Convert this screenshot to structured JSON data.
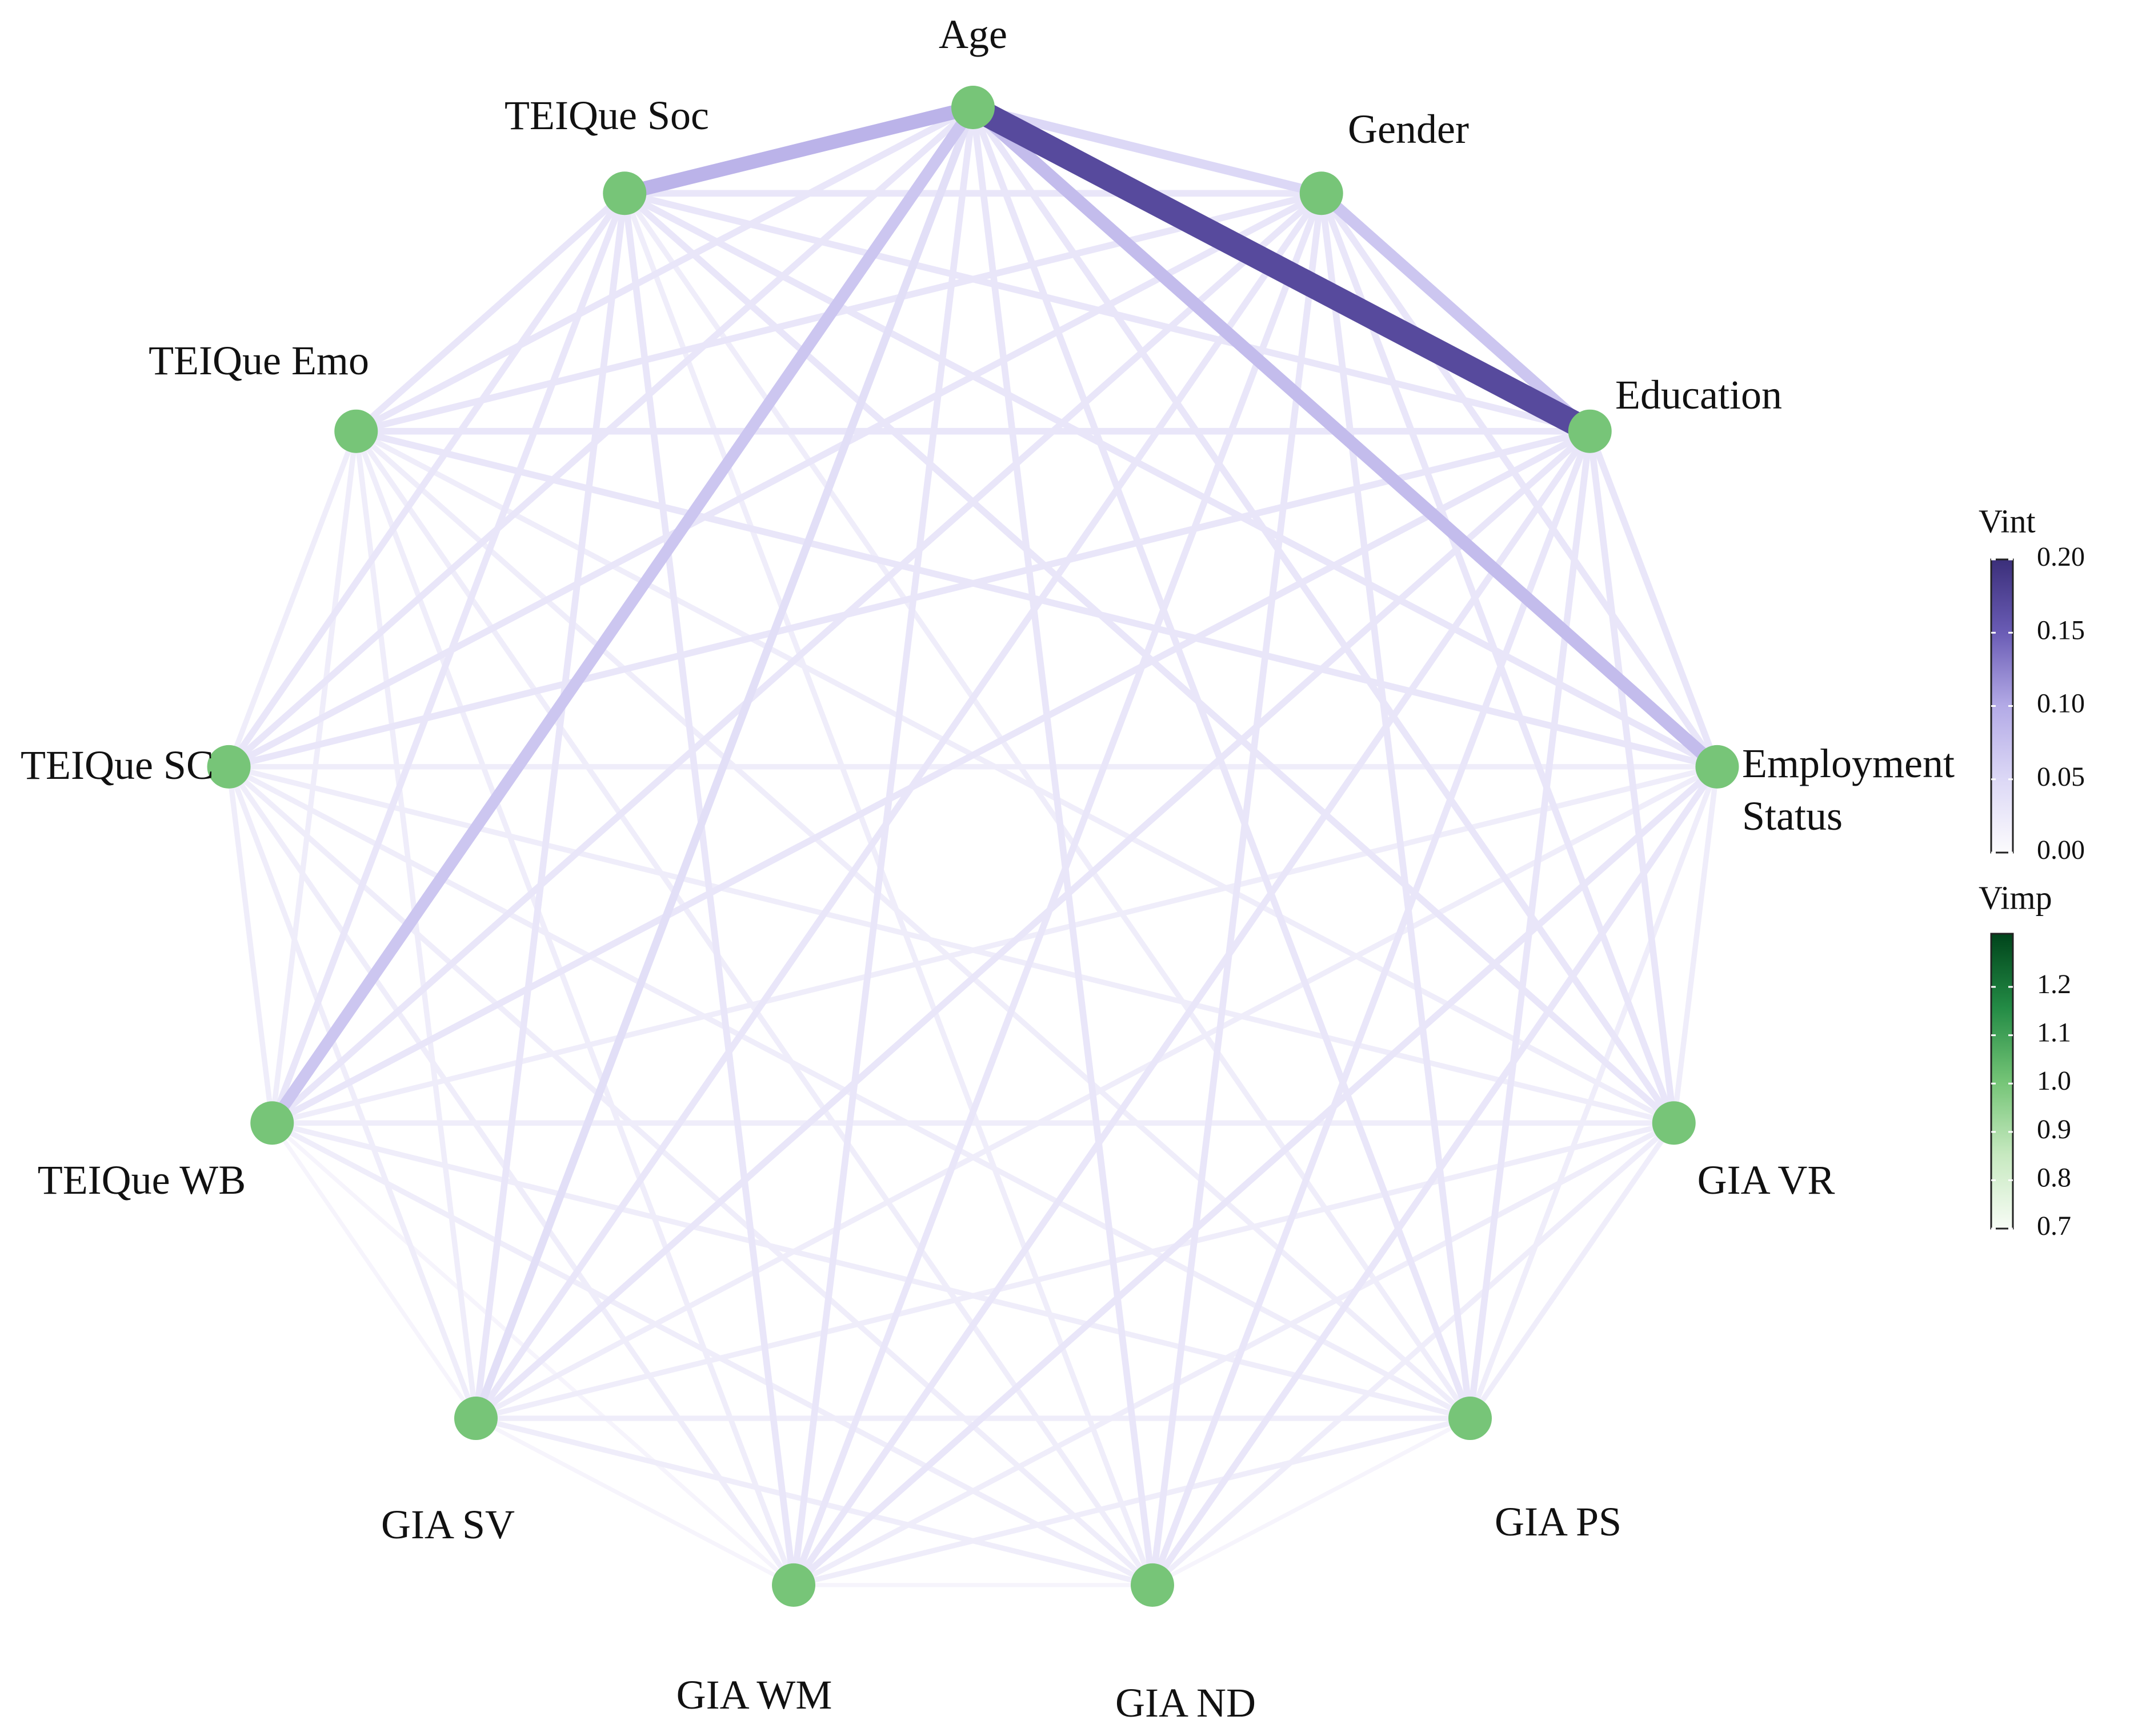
{
  "chart_data": {
    "type": "network",
    "nodes": [
      {
        "name": "Age",
        "vimp": 1.0
      },
      {
        "name": "Gender",
        "vimp": 1.0
      },
      {
        "name": "Education",
        "vimp": 1.0
      },
      {
        "name": "Employment Status",
        "vimp": 1.0
      },
      {
        "name": "GIA VR",
        "vimp": 1.0
      },
      {
        "name": "GIA PS",
        "vimp": 1.0
      },
      {
        "name": "GIA ND",
        "vimp": 1.0
      },
      {
        "name": "GIA WM",
        "vimp": 1.0
      },
      {
        "name": "GIA SV",
        "vimp": 1.0
      },
      {
        "name": "TEIQue WB",
        "vimp": 1.0
      },
      {
        "name": "TEIQue SC",
        "vimp": 1.0
      },
      {
        "name": "TEIQue Emo",
        "vimp": 1.0
      },
      {
        "name": "TEIQue Soc",
        "vimp": 1.0
      }
    ],
    "links": [
      {
        "source": "Age",
        "target": "Gender",
        "value": 0.05
      },
      {
        "source": "Age",
        "target": "Education",
        "value": 0.17
      },
      {
        "source": "Age",
        "target": "Employment Status",
        "value": 0.08
      },
      {
        "source": "Age",
        "target": "GIA VR",
        "value": 0.03
      },
      {
        "source": "Age",
        "target": "GIA PS",
        "value": 0.03
      },
      {
        "source": "Age",
        "target": "GIA ND",
        "value": 0.03
      },
      {
        "source": "Age",
        "target": "GIA WM",
        "value": 0.03
      },
      {
        "source": "Age",
        "target": "GIA SV",
        "value": 0.04
      },
      {
        "source": "Age",
        "target": "TEIQue WB",
        "value": 0.07
      },
      {
        "source": "Age",
        "target": "TEIQue SC",
        "value": 0.03
      },
      {
        "source": "Age",
        "target": "TEIQue Emo",
        "value": 0.03
      },
      {
        "source": "Age",
        "target": "TEIQue Soc",
        "value": 0.09
      },
      {
        "source": "Gender",
        "target": "Education",
        "value": 0.07
      },
      {
        "source": "Gender",
        "target": "Employment Status",
        "value": 0.03
      },
      {
        "source": "Gender",
        "target": "GIA VR",
        "value": 0.03
      },
      {
        "source": "Gender",
        "target": "GIA PS",
        "value": 0.03
      },
      {
        "source": "Gender",
        "target": "GIA ND",
        "value": 0.03
      },
      {
        "source": "Gender",
        "target": "GIA WM",
        "value": 0.03
      },
      {
        "source": "Gender",
        "target": "GIA SV",
        "value": 0.03
      },
      {
        "source": "Gender",
        "target": "TEIQue WB",
        "value": 0.03
      },
      {
        "source": "Gender",
        "target": "TEIQue SC",
        "value": 0.03
      },
      {
        "source": "Gender",
        "target": "TEIQue Emo",
        "value": 0.03
      },
      {
        "source": "Gender",
        "target": "TEIQue Soc",
        "value": 0.03
      },
      {
        "source": "Education",
        "target": "Employment Status",
        "value": 0.03
      },
      {
        "source": "Education",
        "target": "GIA VR",
        "value": 0.03
      },
      {
        "source": "Education",
        "target": "GIA PS",
        "value": 0.03
      },
      {
        "source": "Education",
        "target": "GIA ND",
        "value": 0.03
      },
      {
        "source": "Education",
        "target": "GIA WM",
        "value": 0.03
      },
      {
        "source": "Education",
        "target": "GIA SV",
        "value": 0.03
      },
      {
        "source": "Education",
        "target": "TEIQue WB",
        "value": 0.03
      },
      {
        "source": "Education",
        "target": "TEIQue SC",
        "value": 0.03
      },
      {
        "source": "Education",
        "target": "TEIQue Emo",
        "value": 0.03
      },
      {
        "source": "Education",
        "target": "TEIQue Soc",
        "value": 0.03
      },
      {
        "source": "Employment Status",
        "target": "GIA VR",
        "value": 0.02
      },
      {
        "source": "Employment Status",
        "target": "GIA PS",
        "value": 0.02
      },
      {
        "source": "Employment Status",
        "target": "GIA ND",
        "value": 0.03
      },
      {
        "source": "Employment Status",
        "target": "GIA WM",
        "value": 0.03
      },
      {
        "source": "Employment Status",
        "target": "GIA SV",
        "value": 0.02
      },
      {
        "source": "Employment Status",
        "target": "TEIQue WB",
        "value": 0.02
      },
      {
        "source": "Employment Status",
        "target": "TEIQue SC",
        "value": 0.02
      },
      {
        "source": "Employment Status",
        "target": "TEIQue Emo",
        "value": 0.03
      },
      {
        "source": "Employment Status",
        "target": "TEIQue Soc",
        "value": 0.03
      },
      {
        "source": "GIA VR",
        "target": "GIA PS",
        "value": 0.02
      },
      {
        "source": "GIA VR",
        "target": "GIA ND",
        "value": 0.02
      },
      {
        "source": "GIA VR",
        "target": "GIA WM",
        "value": 0.02
      },
      {
        "source": "GIA VR",
        "target": "GIA SV",
        "value": 0.02
      },
      {
        "source": "GIA VR",
        "target": "TEIQue WB",
        "value": 0.02
      },
      {
        "source": "GIA VR",
        "target": "TEIQue SC",
        "value": 0.02
      },
      {
        "source": "GIA VR",
        "target": "TEIQue Emo",
        "value": 0.02
      },
      {
        "source": "GIA VR",
        "target": "TEIQue Soc",
        "value": 0.03
      },
      {
        "source": "GIA PS",
        "target": "GIA ND",
        "value": 0.01
      },
      {
        "source": "GIA PS",
        "target": "GIA WM",
        "value": 0.02
      },
      {
        "source": "GIA PS",
        "target": "GIA SV",
        "value": 0.02
      },
      {
        "source": "GIA PS",
        "target": "TEIQue WB",
        "value": 0.02
      },
      {
        "source": "GIA PS",
        "target": "TEIQue SC",
        "value": 0.02
      },
      {
        "source": "GIA PS",
        "target": "TEIQue Emo",
        "value": 0.02
      },
      {
        "source": "GIA PS",
        "target": "TEIQue Soc",
        "value": 0.02
      },
      {
        "source": "GIA ND",
        "target": "GIA WM",
        "value": 0.01
      },
      {
        "source": "GIA ND",
        "target": "GIA SV",
        "value": 0.02
      },
      {
        "source": "GIA ND",
        "target": "TEIQue WB",
        "value": 0.02
      },
      {
        "source": "GIA ND",
        "target": "TEIQue SC",
        "value": 0.02
      },
      {
        "source": "GIA ND",
        "target": "TEIQue Emo",
        "value": 0.02
      },
      {
        "source": "GIA ND",
        "target": "TEIQue Soc",
        "value": 0.02
      },
      {
        "source": "GIA WM",
        "target": "GIA SV",
        "value": 0.01
      },
      {
        "source": "GIA WM",
        "target": "TEIQue WB",
        "value": 0.01
      },
      {
        "source": "GIA WM",
        "target": "TEIQue SC",
        "value": 0.02
      },
      {
        "source": "GIA WM",
        "target": "TEIQue Emo",
        "value": 0.02
      },
      {
        "source": "GIA WM",
        "target": "TEIQue Soc",
        "value": 0.03
      },
      {
        "source": "GIA SV",
        "target": "TEIQue WB",
        "value": 0.01
      },
      {
        "source": "GIA SV",
        "target": "TEIQue SC",
        "value": 0.02
      },
      {
        "source": "GIA SV",
        "target": "TEIQue Emo",
        "value": 0.02
      },
      {
        "source": "GIA SV",
        "target": "TEIQue Soc",
        "value": 0.03
      },
      {
        "source": "TEIQue WB",
        "target": "TEIQue SC",
        "value": 0.02
      },
      {
        "source": "TEIQue WB",
        "target": "TEIQue Emo",
        "value": 0.02
      },
      {
        "source": "TEIQue WB",
        "target": "TEIQue Soc",
        "value": 0.03
      },
      {
        "source": "TEIQue SC",
        "target": "TEIQue Emo",
        "value": 0.02
      },
      {
        "source": "TEIQue SC",
        "target": "TEIQue Soc",
        "value": 0.03
      },
      {
        "source": "TEIQue Emo",
        "target": "TEIQue Soc",
        "value": 0.03
      }
    ],
    "edge_scale": {
      "title": "Vint",
      "lim": [
        0,
        0.2
      ],
      "ticks": [
        {
          "value": 0,
          "label": "0.00"
        },
        {
          "value": 0.05,
          "label": "0.05"
        },
        {
          "value": 0.1,
          "label": "0.10"
        },
        {
          "value": 0.15,
          "label": "0.15"
        },
        {
          "value": 0.2,
          "label": "0.20"
        }
      ],
      "colors": [
        "#fcfbfd",
        "#dcd8f6",
        "#b3aae6",
        "#6a5cb5",
        "#3b2f7a"
      ]
    },
    "node_scale": {
      "title": "Vimp",
      "lim": [
        0.7,
        1.31
      ],
      "ticks": [
        0.7,
        0.8,
        0.9,
        {
          "value": 1.0,
          "label": "1.0"
        },
        1.1,
        1.2
      ],
      "colors": [
        "#f7fcf5",
        "#c7e9c0",
        "#74c476",
        "#238b45",
        "#00441b"
      ]
    }
  }
}
